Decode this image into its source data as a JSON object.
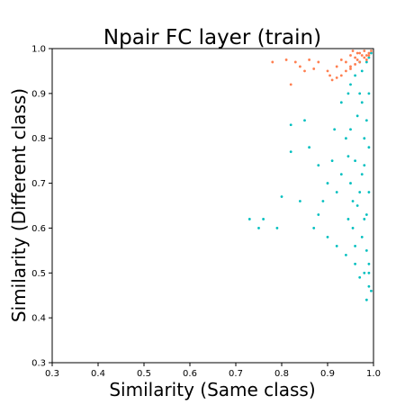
{
  "chart_data": {
    "type": "scatter",
    "title": "Npair FC layer  (train)",
    "xlabel": "Similarity (Same class)",
    "ylabel": "Similarity (Different class)",
    "xlim": [
      0.3,
      1.0
    ],
    "ylim": [
      0.3,
      1.0
    ],
    "xticks": [
      "0.3",
      "0.4",
      "0.5",
      "0.6",
      "0.7",
      "0.8",
      "0.9",
      "1.0"
    ],
    "yticks": [
      "0.3",
      "0.4",
      "0.5",
      "0.6",
      "0.7",
      "0.8",
      "0.9",
      "1.0"
    ],
    "grid": false,
    "series": [
      {
        "color": "#00BFBF",
        "points": [
          [
            0.975,
            0.95
          ],
          [
            0.97,
            0.9
          ],
          [
            0.965,
            0.85
          ],
          [
            0.98,
            0.8
          ],
          [
            0.96,
            0.75
          ],
          [
            0.975,
            0.72
          ],
          [
            0.97,
            0.68
          ],
          [
            0.965,
            0.65
          ],
          [
            0.98,
            0.62
          ],
          [
            0.975,
            0.58
          ],
          [
            0.985,
            0.55
          ],
          [
            0.99,
            0.52
          ],
          [
            0.98,
            0.5
          ],
          [
            0.99,
            0.47
          ],
          [
            0.995,
            0.46
          ],
          [
            0.95,
            0.92
          ],
          [
            0.94,
            0.8
          ],
          [
            0.93,
            0.72
          ],
          [
            0.92,
            0.68
          ],
          [
            0.945,
            0.62
          ],
          [
            0.955,
            0.6
          ],
          [
            0.96,
            0.56
          ],
          [
            0.93,
            0.88
          ],
          [
            0.915,
            0.82
          ],
          [
            0.91,
            0.75
          ],
          [
            0.9,
            0.7
          ],
          [
            0.89,
            0.66
          ],
          [
            0.88,
            0.63
          ],
          [
            0.87,
            0.6
          ],
          [
            0.86,
            0.78
          ],
          [
            0.85,
            0.84
          ],
          [
            0.84,
            0.66
          ],
          [
            0.82,
            0.77
          ],
          [
            0.8,
            0.67
          ],
          [
            0.79,
            0.6
          ],
          [
            0.76,
            0.62
          ],
          [
            0.75,
            0.6
          ],
          [
            0.73,
            0.62
          ],
          [
            0.82,
            0.83
          ],
          [
            0.88,
            0.74
          ],
          [
            0.9,
            0.58
          ],
          [
            0.92,
            0.56
          ],
          [
            0.94,
            0.54
          ],
          [
            0.96,
            0.52
          ],
          [
            0.97,
            0.49
          ],
          [
            0.985,
            0.44
          ],
          [
            0.99,
            0.5
          ],
          [
            0.97,
            0.97
          ],
          [
            0.985,
            0.97
          ],
          [
            0.99,
            0.98
          ],
          [
            0.995,
            0.99
          ],
          [
            0.96,
            0.94
          ],
          [
            0.945,
            0.9
          ],
          [
            0.985,
            0.63
          ],
          [
            0.99,
            0.68
          ],
          [
            0.98,
            0.74
          ],
          [
            0.99,
            0.78
          ],
          [
            0.985,
            0.84
          ],
          [
            0.99,
            0.9
          ],
          [
            0.975,
            0.88
          ],
          [
            0.955,
            0.66
          ],
          [
            0.95,
            0.7
          ],
          [
            0.945,
            0.76
          ],
          [
            0.95,
            0.82
          ]
        ]
      },
      {
        "color": "#FF7F50",
        "points": [
          [
            0.995,
            0.995
          ],
          [
            0.99,
            0.99
          ],
          [
            0.985,
            0.985
          ],
          [
            0.98,
            0.98
          ],
          [
            0.97,
            0.97
          ],
          [
            0.965,
            0.975
          ],
          [
            0.96,
            0.965
          ],
          [
            0.95,
            0.96
          ],
          [
            0.94,
            0.95
          ],
          [
            0.93,
            0.94
          ],
          [
            0.92,
            0.935
          ],
          [
            0.91,
            0.93
          ],
          [
            0.9,
            0.95
          ],
          [
            0.88,
            0.97
          ],
          [
            0.86,
            0.975
          ],
          [
            0.84,
            0.96
          ],
          [
            0.93,
            0.975
          ],
          [
            0.95,
            0.985
          ],
          [
            0.97,
            0.99
          ],
          [
            0.98,
            0.995
          ],
          [
            0.96,
            0.98
          ],
          [
            0.94,
            0.97
          ],
          [
            0.92,
            0.96
          ],
          [
            0.905,
            0.94
          ],
          [
            0.95,
            0.955
          ],
          [
            0.985,
            0.975
          ],
          [
            0.99,
            0.985
          ],
          [
            0.975,
            0.985
          ],
          [
            0.965,
            0.99
          ],
          [
            0.955,
            0.995
          ],
          [
            0.85,
            0.95
          ],
          [
            0.87,
            0.955
          ],
          [
            0.83,
            0.97
          ],
          [
            0.81,
            0.975
          ],
          [
            0.78,
            0.97
          ],
          [
            0.82,
            0.92
          ]
        ]
      }
    ]
  }
}
